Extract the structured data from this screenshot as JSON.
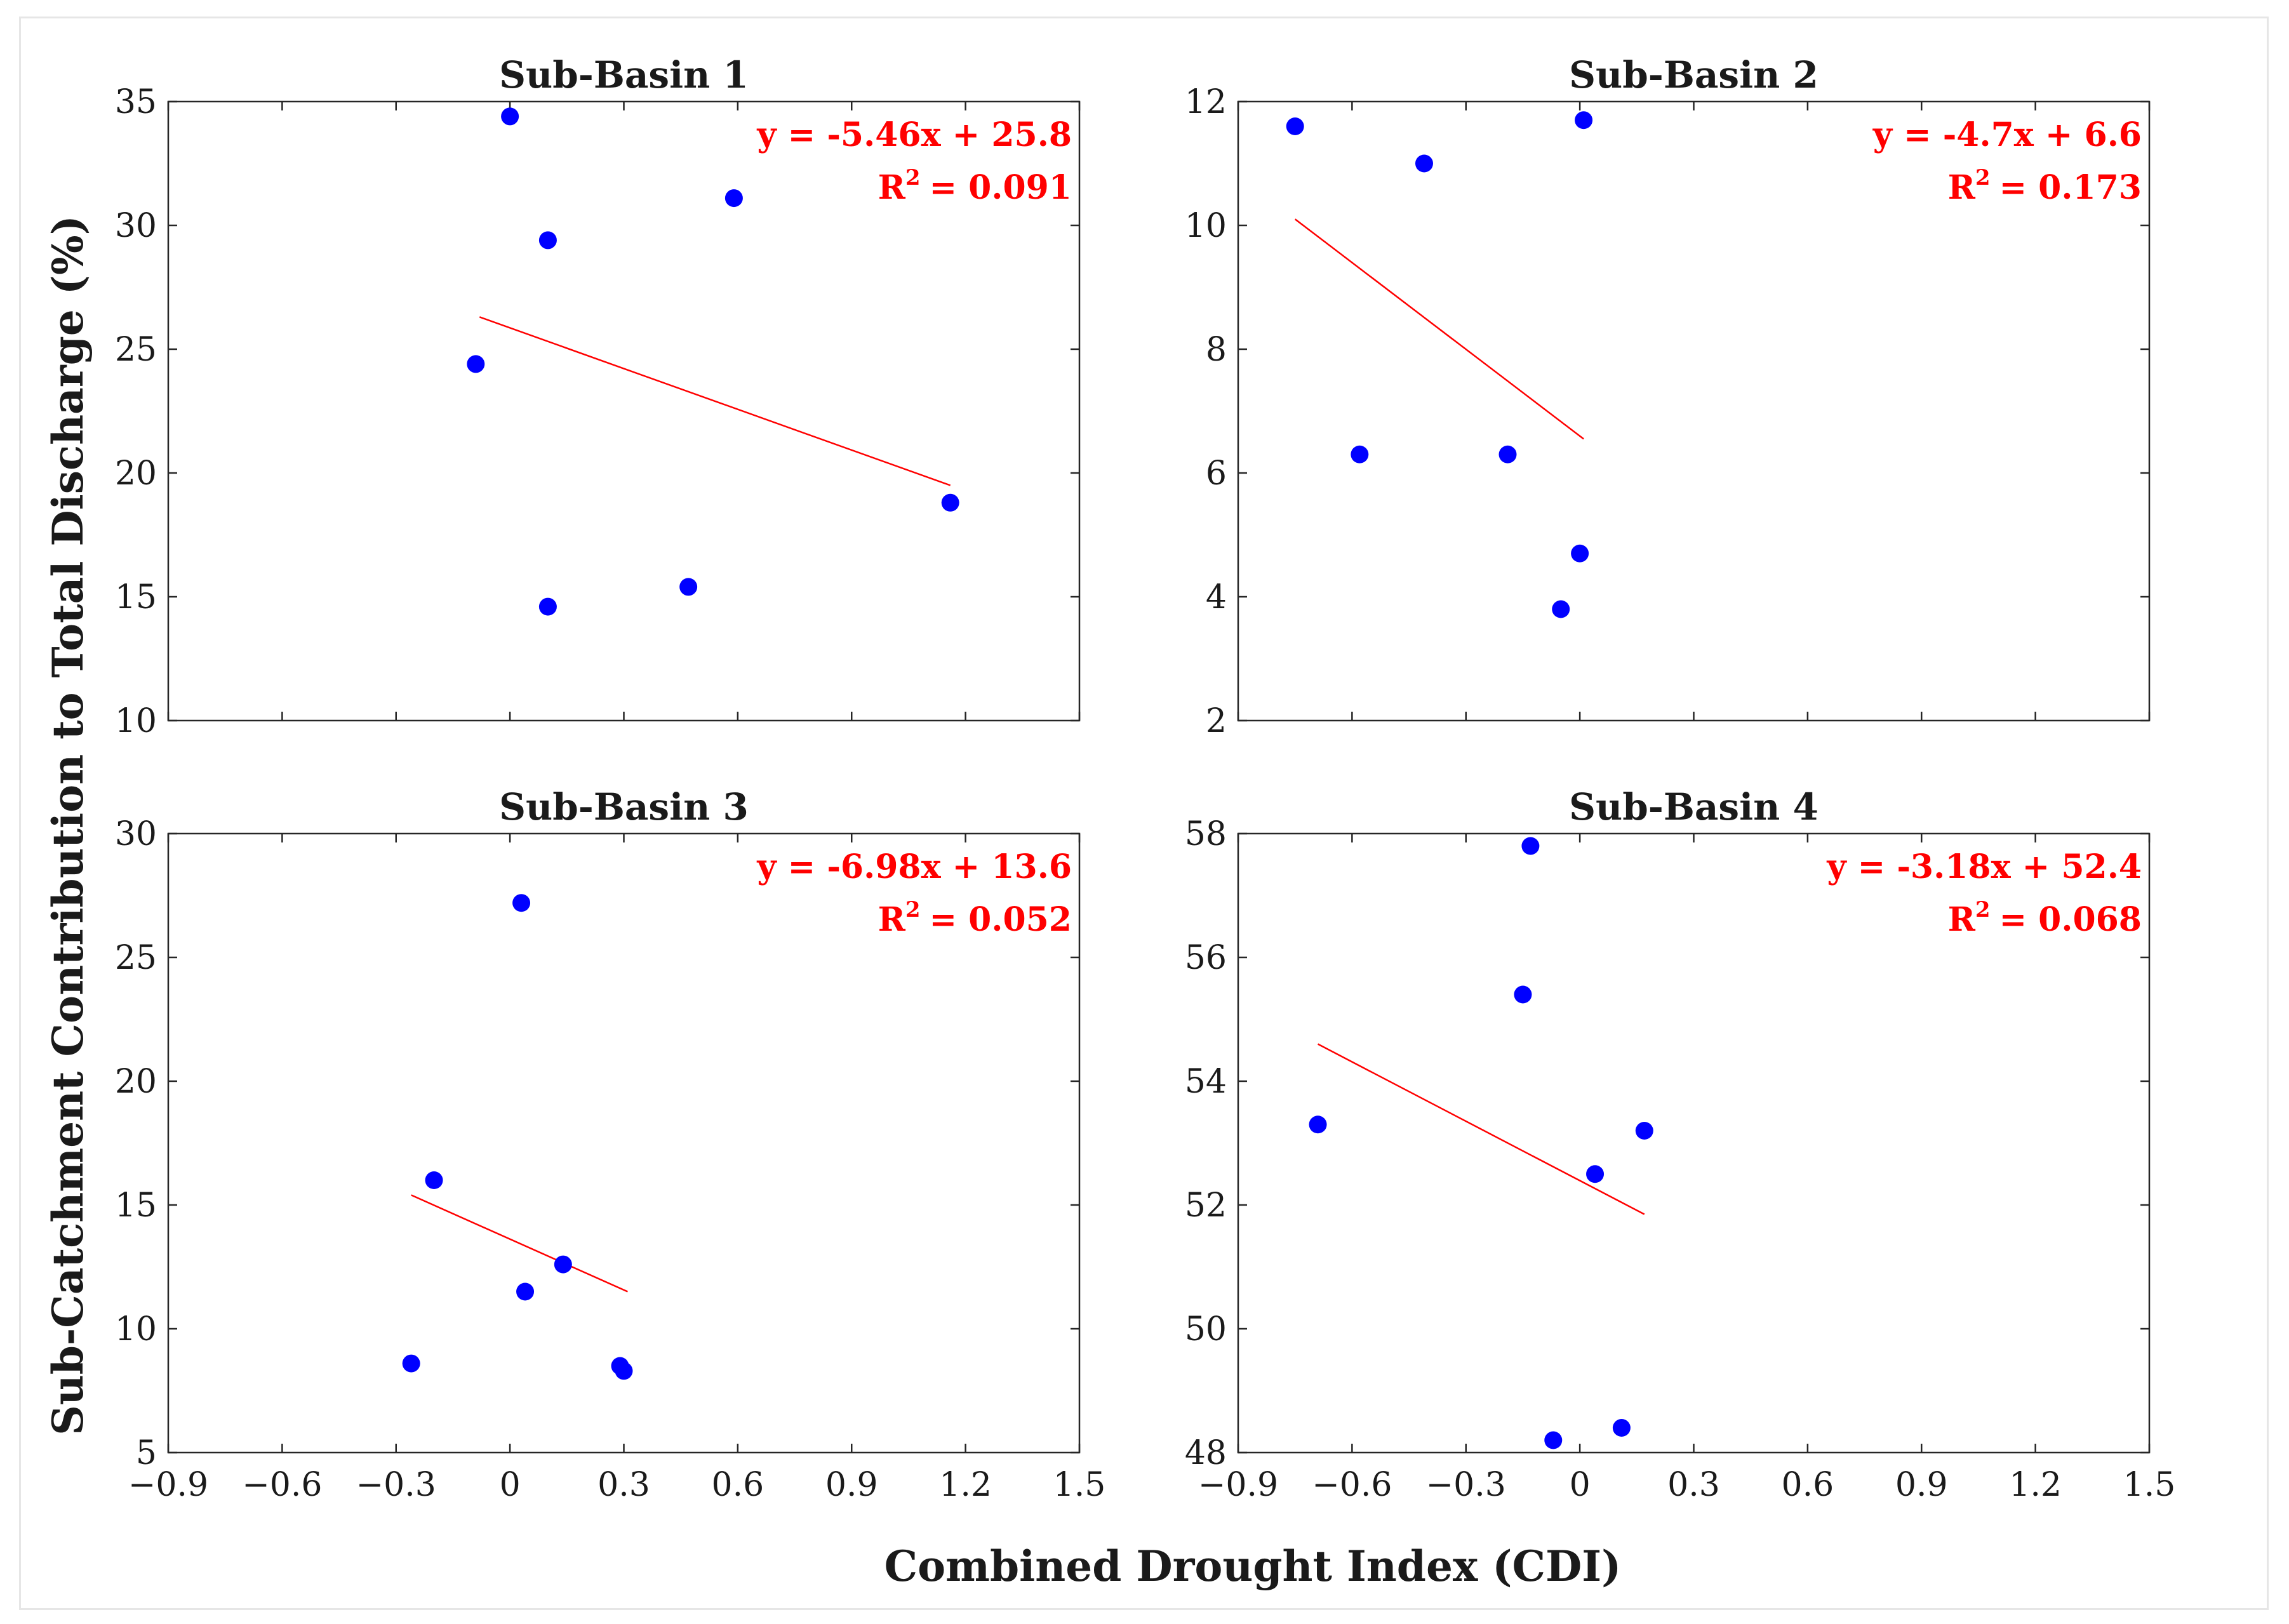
{
  "chart_data": {
    "type": "scatter",
    "xlabel": "Combined Drought Index (CDI)",
    "ylabel": "Sub-Catchment Contribution to Total Discharge (%)",
    "xlim": [
      -0.9,
      1.5
    ],
    "x_ticks": [
      -0.9,
      -0.6,
      -0.3,
      0,
      0.3,
      0.6,
      0.9,
      1.2,
      1.5
    ],
    "x_tick_labels": [
      "−0.9",
      "−0.6",
      "−0.3",
      "0",
      "0.3",
      "0.6",
      "0.9",
      "1.2",
      "1.5"
    ],
    "marker_color": "#0000ff",
    "fit_color": "#ff0000",
    "panels": [
      {
        "title": "Sub-Basin 1",
        "ylim": [
          10,
          35
        ],
        "y_ticks": [
          10,
          15,
          20,
          25,
          30,
          35
        ],
        "points": [
          {
            "x": 0.0,
            "y": 34.4
          },
          {
            "x": 0.59,
            "y": 31.1
          },
          {
            "x": 0.1,
            "y": 29.4
          },
          {
            "x": -0.09,
            "y": 24.4
          },
          {
            "x": 1.16,
            "y": 18.8
          },
          {
            "x": 0.47,
            "y": 15.4
          },
          {
            "x": 0.1,
            "y": 14.6
          }
        ],
        "fit": {
          "slope": -5.46,
          "intercept": 25.8,
          "x_range": [
            -0.08,
            1.16
          ],
          "y_range": [
            26.3,
            19.5
          ]
        },
        "equation": "y = -5.46x + 25.8",
        "r2_prefix": "R",
        "r2_sup": "2",
        "r2_value": "=  0.091"
      },
      {
        "title": "Sub-Basin 2",
        "ylim": [
          2,
          12
        ],
        "y_ticks": [
          2,
          4,
          6,
          8,
          10,
          12
        ],
        "points": [
          {
            "x": -0.75,
            "y": 11.6
          },
          {
            "x": 0.01,
            "y": 11.7
          },
          {
            "x": -0.41,
            "y": 11.0
          },
          {
            "x": -0.58,
            "y": 6.3
          },
          {
            "x": -0.19,
            "y": 6.3
          },
          {
            "x": 0.0,
            "y": 4.7
          },
          {
            "x": -0.05,
            "y": 3.8
          }
        ],
        "fit": {
          "slope": -4.7,
          "intercept": 6.6,
          "x_range": [
            -0.75,
            0.01
          ],
          "y_range": [
            10.1,
            6.55
          ]
        },
        "equation": "y = -4.7x + 6.6",
        "r2_prefix": "R",
        "r2_sup": "2",
        "r2_value": "=  0.173"
      },
      {
        "title": "Sub-Basin 3",
        "ylim": [
          5,
          30
        ],
        "y_ticks": [
          5,
          10,
          15,
          20,
          25,
          30
        ],
        "points": [
          {
            "x": 0.03,
            "y": 27.2
          },
          {
            "x": -0.2,
            "y": 16.0
          },
          {
            "x": 0.14,
            "y": 12.6
          },
          {
            "x": 0.04,
            "y": 11.5
          },
          {
            "x": -0.26,
            "y": 8.6
          },
          {
            "x": 0.29,
            "y": 8.5
          },
          {
            "x": 0.3,
            "y": 8.3
          }
        ],
        "fit": {
          "slope": -6.98,
          "intercept": 13.6,
          "x_range": [
            -0.26,
            0.31
          ],
          "y_range": [
            15.4,
            11.5
          ]
        },
        "equation": "y = -6.98x + 13.6",
        "r2_prefix": "R",
        "r2_sup": "2",
        "r2_value": "=  0.052"
      },
      {
        "title": "Sub-Basin 4",
        "ylim": [
          48,
          58
        ],
        "y_ticks": [
          48,
          50,
          52,
          54,
          56,
          58
        ],
        "points": [
          {
            "x": -0.13,
            "y": 57.8
          },
          {
            "x": -0.15,
            "y": 55.4
          },
          {
            "x": -0.69,
            "y": 53.3
          },
          {
            "x": 0.17,
            "y": 53.2
          },
          {
            "x": 0.04,
            "y": 52.5
          },
          {
            "x": 0.11,
            "y": 48.4
          },
          {
            "x": -0.07,
            "y": 48.2
          }
        ],
        "fit": {
          "slope": -3.18,
          "intercept": 52.4,
          "x_range": [
            -0.69,
            0.17
          ],
          "y_range": [
            54.6,
            51.85
          ]
        },
        "equation": "y = -3.18x + 52.4",
        "r2_prefix": "R",
        "r2_sup": "2",
        "r2_value": "=  0.068"
      }
    ]
  }
}
